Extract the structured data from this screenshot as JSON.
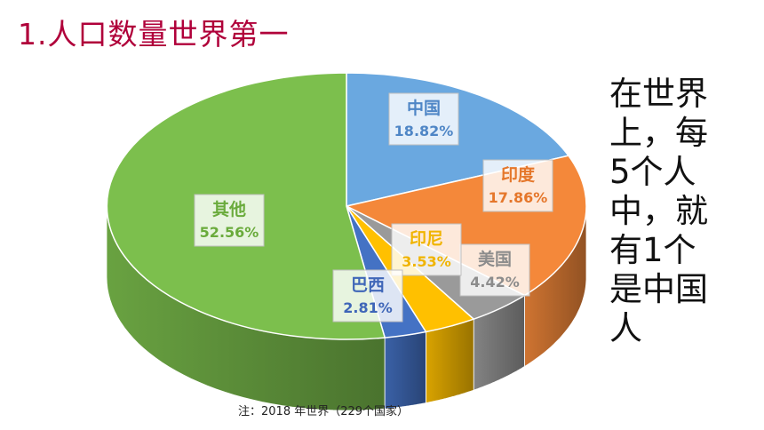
{
  "title": "1.人口数量世界第一",
  "side_text": "在世界\n上，每\n5个人\n中，就\n有1个\n是中国\n人",
  "note": "注：2018 年世界（229个国家）",
  "chart_data": {
    "type": "pie",
    "style": "3d",
    "slices": [
      {
        "label": "中国",
        "value": 18.82,
        "value_text": "18.82%",
        "color": "#6aa8e0",
        "text_color": "#4f86c6"
      },
      {
        "label": "印度",
        "value": 17.86,
        "value_text": "17.86%",
        "color": "#f4883a",
        "text_color": "#e5772b"
      },
      {
        "label": "美国",
        "value": 4.42,
        "value_text": "4.42%",
        "color": "#9a9a9a",
        "text_color": "#8c8c8c"
      },
      {
        "label": "印尼",
        "value": 3.53,
        "value_text": "3.53%",
        "color": "#ffc000",
        "text_color": "#f0b400"
      },
      {
        "label": "巴西",
        "value": 2.81,
        "value_text": "2.81%",
        "color": "#4472c4",
        "text_color": "#3f66b8"
      },
      {
        "label": "其他",
        "value": 52.56,
        "value_text": "52.56%",
        "color": "#7cbf4d",
        "text_color": "#6aab3c"
      }
    ]
  }
}
